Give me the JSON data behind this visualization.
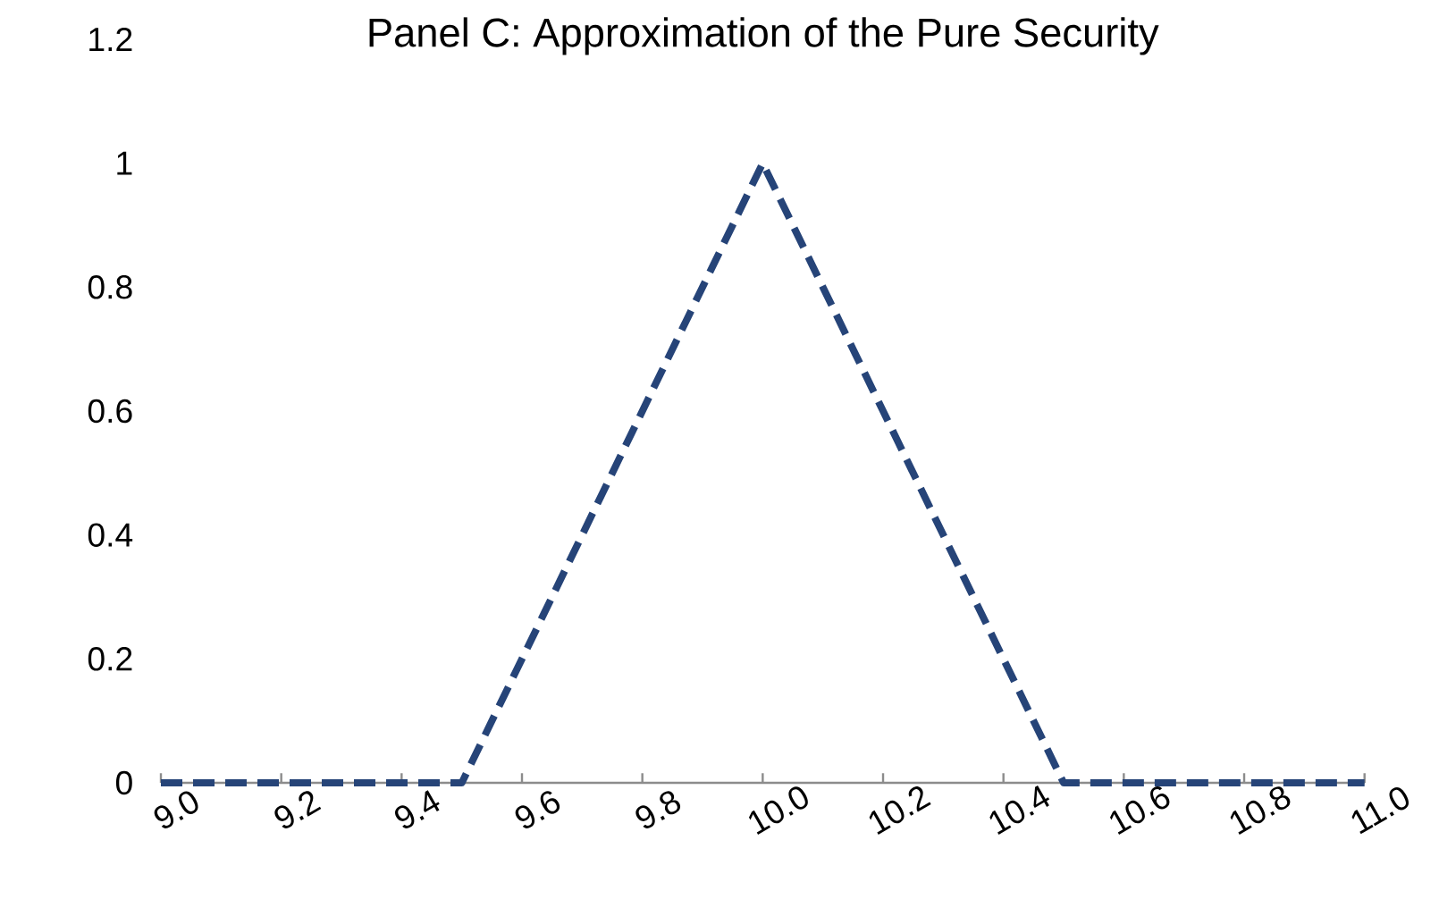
{
  "chart_data": {
    "type": "line",
    "title": "Panel C: Approximation of the Pure Security",
    "x": [
      9.0,
      9.5,
      10.0,
      10.5,
      11.0
    ],
    "series": [
      {
        "color": "#264478",
        "values": [
          0,
          0,
          1,
          0,
          0
        ],
        "line_style": "dashed"
      }
    ],
    "xlim": [
      9.0,
      11.0
    ],
    "xticks": [
      {
        "value": 9.0,
        "label": "9.0"
      },
      {
        "value": 9.2,
        "label": "9.2"
      },
      {
        "value": 9.4,
        "label": "9.4"
      },
      {
        "value": 9.6,
        "label": "9.6"
      },
      {
        "value": 9.8,
        "label": "9.8"
      },
      {
        "value": 10.0,
        "label": "10.0"
      },
      {
        "value": 10.2,
        "label": "10.2"
      },
      {
        "value": 10.4,
        "label": "10.4"
      },
      {
        "value": 10.6,
        "label": "10.6"
      },
      {
        "value": 10.8,
        "label": "10.8"
      },
      {
        "value": 11.0,
        "label": "11.0"
      }
    ],
    "ylim": [
      0,
      1.2
    ],
    "yticks": [
      0,
      0.2,
      0.4,
      0.6,
      0.8,
      1,
      1.2
    ]
  }
}
